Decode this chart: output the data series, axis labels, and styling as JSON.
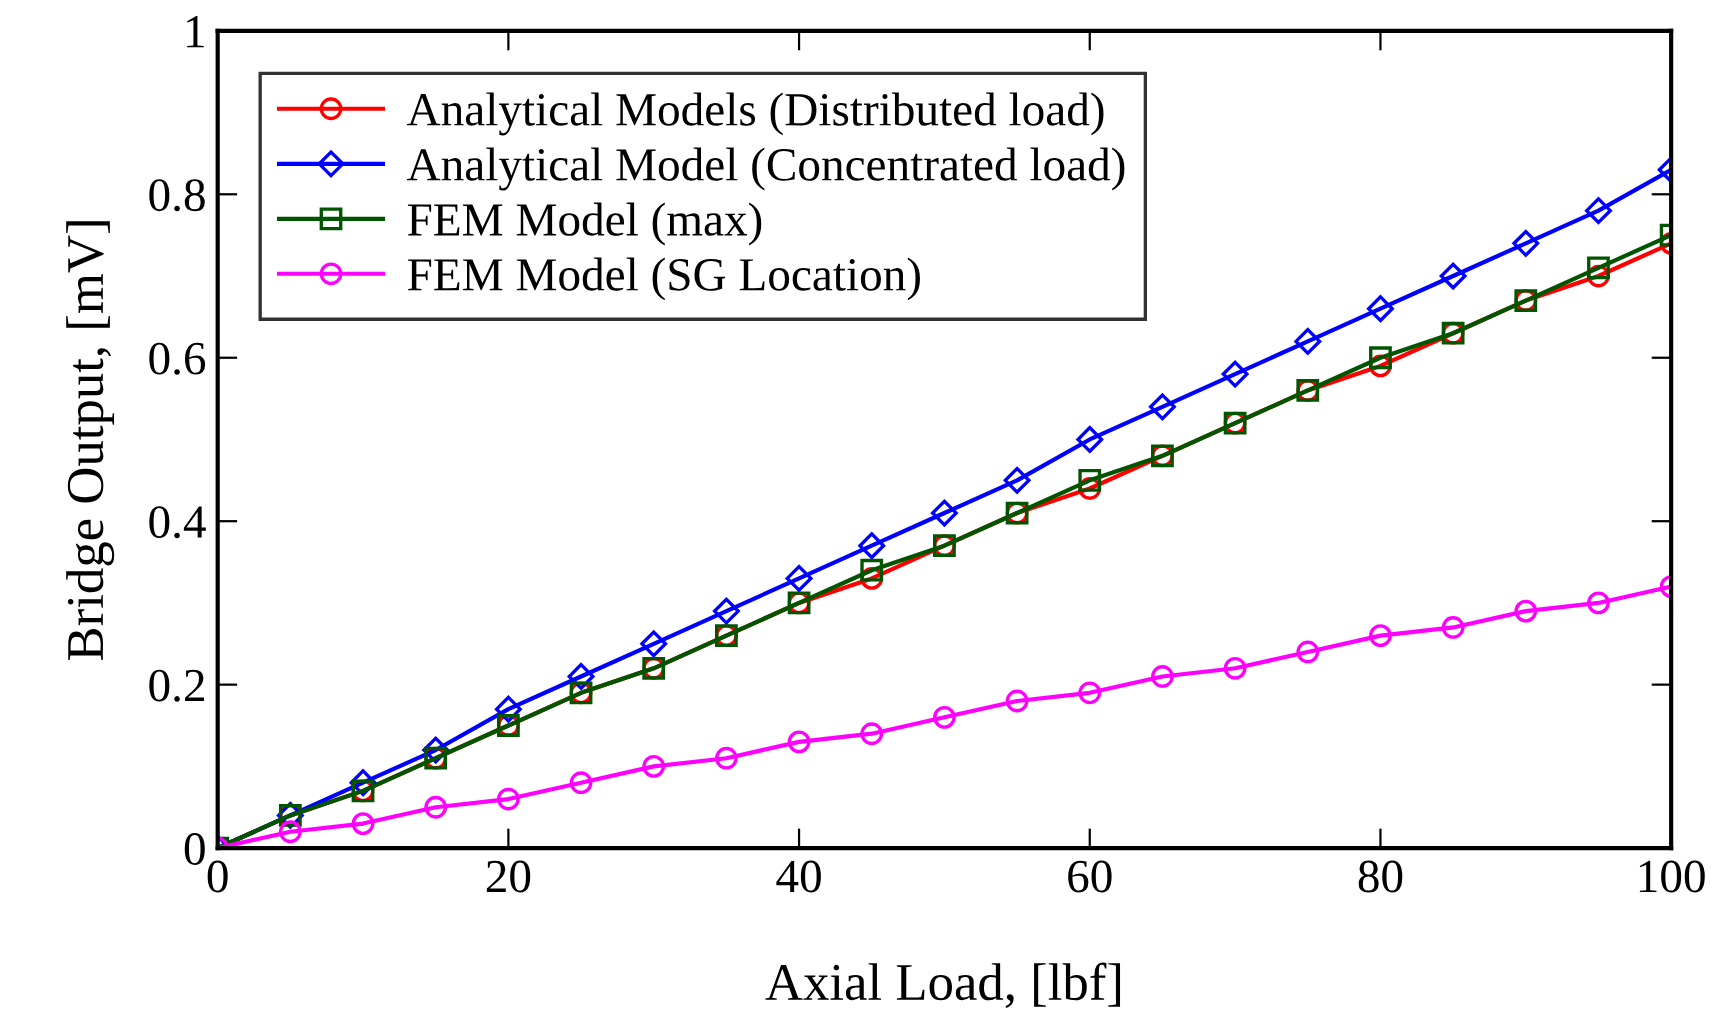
{
  "chart_data": {
    "type": "line",
    "xlabel": "Axial Load, [lbf]",
    "ylabel": "Bridge Output, [mV]",
    "x": [
      0,
      5,
      10,
      15,
      20,
      25,
      30,
      35,
      40,
      45,
      50,
      55,
      60,
      65,
      70,
      75,
      80,
      85,
      90,
      95,
      100
    ],
    "xlim": [
      0,
      100
    ],
    "xticks": [
      0,
      20,
      40,
      60,
      80,
      100
    ],
    "ylim": [
      0,
      1
    ],
    "yticks": [
      0,
      0.2,
      0.4,
      0.6,
      0.8,
      1
    ],
    "grid": false,
    "legend": "top left",
    "line_style": "solid",
    "series": [
      {
        "name": "Analytical Models (Distributed load)",
        "color": "#ff0000",
        "marker": "circle",
        "values": [
          0,
          0.04,
          0.07,
          0.11,
          0.15,
          0.19,
          0.22,
          0.26,
          0.3,
          0.33,
          0.37,
          0.41,
          0.44,
          0.48,
          0.52,
          0.56,
          0.59,
          0.63,
          0.67,
          0.7,
          0.74
        ]
      },
      {
        "name": "Analytical Model (Concentrated load)",
        "color": "#0000ff",
        "marker": "diamond",
        "values": [
          0,
          0.04,
          0.08,
          0.12,
          0.17,
          0.21,
          0.25,
          0.29,
          0.33,
          0.37,
          0.41,
          0.45,
          0.5,
          0.54,
          0.58,
          0.62,
          0.66,
          0.7,
          0.74,
          0.78,
          0.83
        ]
      },
      {
        "name": "FEM Model (max)",
        "color": "#005500",
        "marker": "square",
        "values": [
          0,
          0.04,
          0.07,
          0.11,
          0.15,
          0.19,
          0.22,
          0.26,
          0.3,
          0.34,
          0.37,
          0.41,
          0.45,
          0.48,
          0.52,
          0.56,
          0.6,
          0.63,
          0.67,
          0.71,
          0.75
        ]
      },
      {
        "name": "FEM Model (SG Location)",
        "color": "#ff00ff",
        "marker": "circle",
        "values": [
          0,
          0.02,
          0.03,
          0.05,
          0.06,
          0.08,
          0.1,
          0.11,
          0.13,
          0.14,
          0.16,
          0.18,
          0.19,
          0.21,
          0.22,
          0.24,
          0.26,
          0.27,
          0.29,
          0.3,
          0.32
        ]
      }
    ]
  }
}
